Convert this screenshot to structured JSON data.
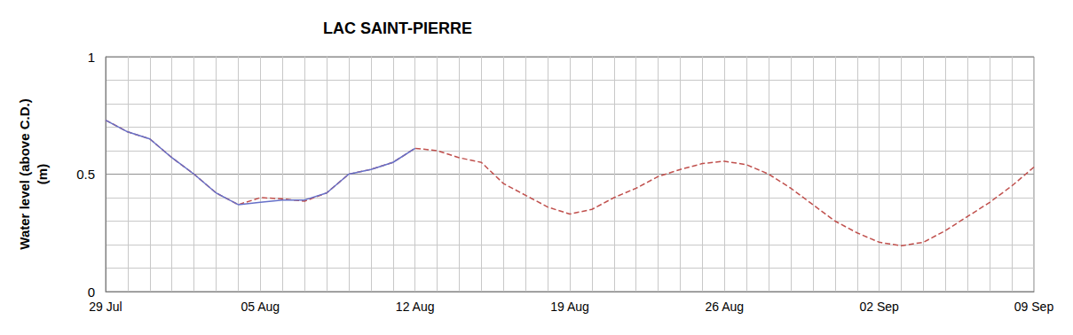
{
  "chart_data": {
    "type": "line",
    "title": "LAC SAINT-PIERRE",
    "ylabel": "Water level (above C.D.)\n(m)",
    "categories": [
      "29 Jul",
      null,
      null,
      null,
      null,
      null,
      null,
      "05 Aug",
      null,
      null,
      null,
      null,
      null,
      null,
      "12 Aug",
      null,
      null,
      null,
      null,
      null,
      null,
      "19 Aug",
      null,
      null,
      null,
      null,
      null,
      null,
      "26 Aug",
      null,
      null,
      null,
      null,
      null,
      null,
      "02 Sep",
      null,
      null,
      null,
      null,
      null,
      null,
      "09 Sep"
    ],
    "series": [
      {
        "color": "#c0504d",
        "line_style": "dashed",
        "values": [
          0.73,
          0.68,
          0.65,
          0.57,
          0.5,
          0.42,
          0.37,
          0.4,
          0.395,
          0.385,
          0.42,
          0.5,
          0.52,
          0.55,
          0.61,
          0.6,
          0.57,
          0.55,
          0.46,
          0.41,
          0.36,
          0.33,
          0.35,
          0.4,
          0.44,
          0.49,
          0.52,
          0.545,
          0.555,
          0.54,
          0.5,
          0.44,
          0.37,
          0.3,
          0.25,
          0.21,
          0.195,
          0.21,
          0.26,
          0.32,
          0.38,
          0.45,
          0.53
        ]
      },
      {
        "color": "#6670c8",
        "line_style": "solid",
        "values": [
          0.73,
          0.68,
          0.65,
          0.57,
          0.5,
          0.42,
          0.37,
          0.38,
          0.39,
          0.39,
          0.42,
          0.5,
          0.52,
          0.55,
          0.61,
          null,
          null,
          null,
          null,
          null,
          null,
          null,
          null,
          null,
          null,
          null,
          null,
          null,
          null,
          null,
          null,
          null,
          null,
          null,
          null,
          null,
          null,
          null,
          null,
          null,
          null,
          null,
          null
        ]
      }
    ],
    "ylim": [
      0,
      1
    ],
    "yticks": [
      0,
      0.5,
      1
    ],
    "grid": true
  }
}
